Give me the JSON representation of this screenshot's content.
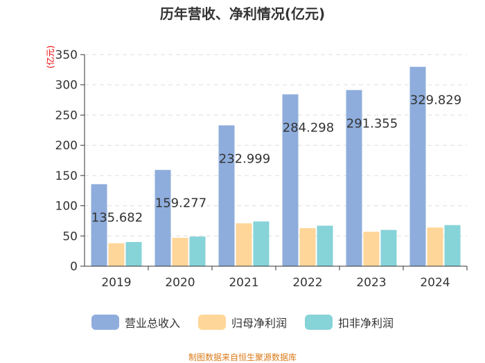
{
  "chart_data": {
    "type": "bar",
    "title": "历年营收、净利情况(亿元)",
    "ylabel": "(亿元)",
    "xlabel": "",
    "categories": [
      "2019",
      "2020",
      "2021",
      "2022",
      "2023",
      "2024"
    ],
    "series": [
      {
        "name": "营业总收入",
        "color": "#8eaddc",
        "values": [
          135.682,
          159.277,
          232.999,
          284.298,
          291.355,
          329.829
        ]
      },
      {
        "name": "归母净利润",
        "color": "#ffd699",
        "values": [
          38,
          47,
          71,
          63,
          57,
          64
        ]
      },
      {
        "name": "扣非净利润",
        "color": "#86d3d8",
        "values": [
          40,
          49,
          74,
          67,
          60,
          68
        ]
      }
    ],
    "data_labels": [
      "135.682",
      "159.277",
      "232.999",
      "284.298",
      "291.355",
      "329.829"
    ],
    "ylim": [
      0,
      350
    ],
    "yticks": [
      0,
      50,
      100,
      150,
      200,
      250,
      300,
      350
    ],
    "grid": true,
    "legend_position": "bottom"
  },
  "footer": {
    "source": "制图数据来自恒生聚源数据库"
  }
}
